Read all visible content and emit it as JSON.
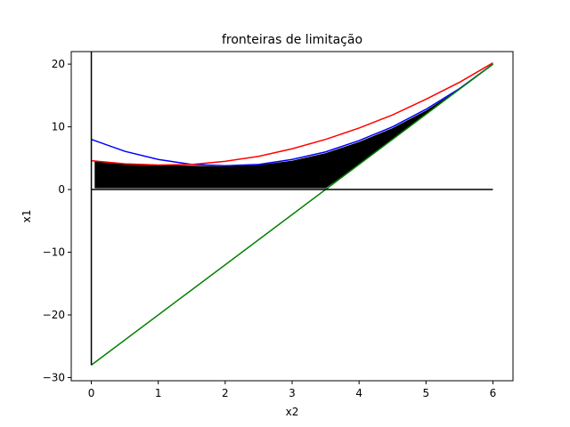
{
  "chart_data": {
    "type": "line",
    "title": "fronteiras de limitação",
    "xlabel": "x2",
    "ylabel": "x1",
    "xlim": [
      -0.3,
      6.3
    ],
    "ylim": [
      -30.5,
      22.0
    ],
    "grid": false,
    "legend": "none",
    "x_ticks": [
      0,
      1,
      2,
      3,
      4,
      5,
      6
    ],
    "y_ticks": [
      -30,
      -20,
      -10,
      0,
      10,
      20
    ],
    "x_tick_labels": [
      "0",
      "1",
      "2",
      "3",
      "4",
      "5",
      "6"
    ],
    "y_tick_labels": [
      "−30",
      "−20",
      "−10",
      "0",
      "10",
      "20"
    ],
    "series": [
      {
        "color": "#0000ff",
        "x": [
          0,
          0.5,
          1,
          1.5,
          2,
          2.5,
          3,
          3.5,
          4,
          4.5,
          5,
          5.5,
          6
        ],
        "y": [
          8.0,
          6.1,
          4.8,
          4.0,
          3.8,
          4.0,
          4.8,
          6.0,
          7.8,
          10.0,
          12.8,
          16.1,
          20.0
        ]
      },
      {
        "color": "#ff0000",
        "x": [
          0,
          0.5,
          1,
          1.5,
          2,
          2.5,
          3,
          3.5,
          4,
          4.5,
          5,
          5.5,
          6
        ],
        "y": [
          4.6,
          4.1,
          3.9,
          4.0,
          4.5,
          5.3,
          6.5,
          8.0,
          9.8,
          11.9,
          14.4,
          17.1,
          20.2
        ]
      },
      {
        "color": "#008000",
        "x": [
          0,
          6
        ],
        "y": [
          -28.0,
          20.0
        ]
      },
      {
        "color": "#000000",
        "x": [
          0,
          0
        ],
        "y": [
          -28.0,
          22.0
        ]
      },
      {
        "color": "#000000",
        "x": [
          0,
          6
        ],
        "y": [
          0,
          0
        ]
      }
    ],
    "filled_region": {
      "color": "#000000",
      "x": [
        0.05,
        0.5,
        1,
        1.5,
        2,
        2.5,
        3,
        3.5,
        4,
        4.5,
        5,
        5.5,
        5.95,
        5.95,
        5.5,
        5.0,
        4.5,
        4.0,
        3.5,
        0.05
      ],
      "y": [
        4.6,
        4.1,
        3.9,
        3.8,
        3.7,
        3.9,
        4.6,
        5.8,
        7.6,
        9.8,
        12.6,
        16.0,
        19.6,
        19.6,
        16.0,
        12.0,
        8.0,
        4.0,
        0.2,
        0.2
      ]
    }
  }
}
